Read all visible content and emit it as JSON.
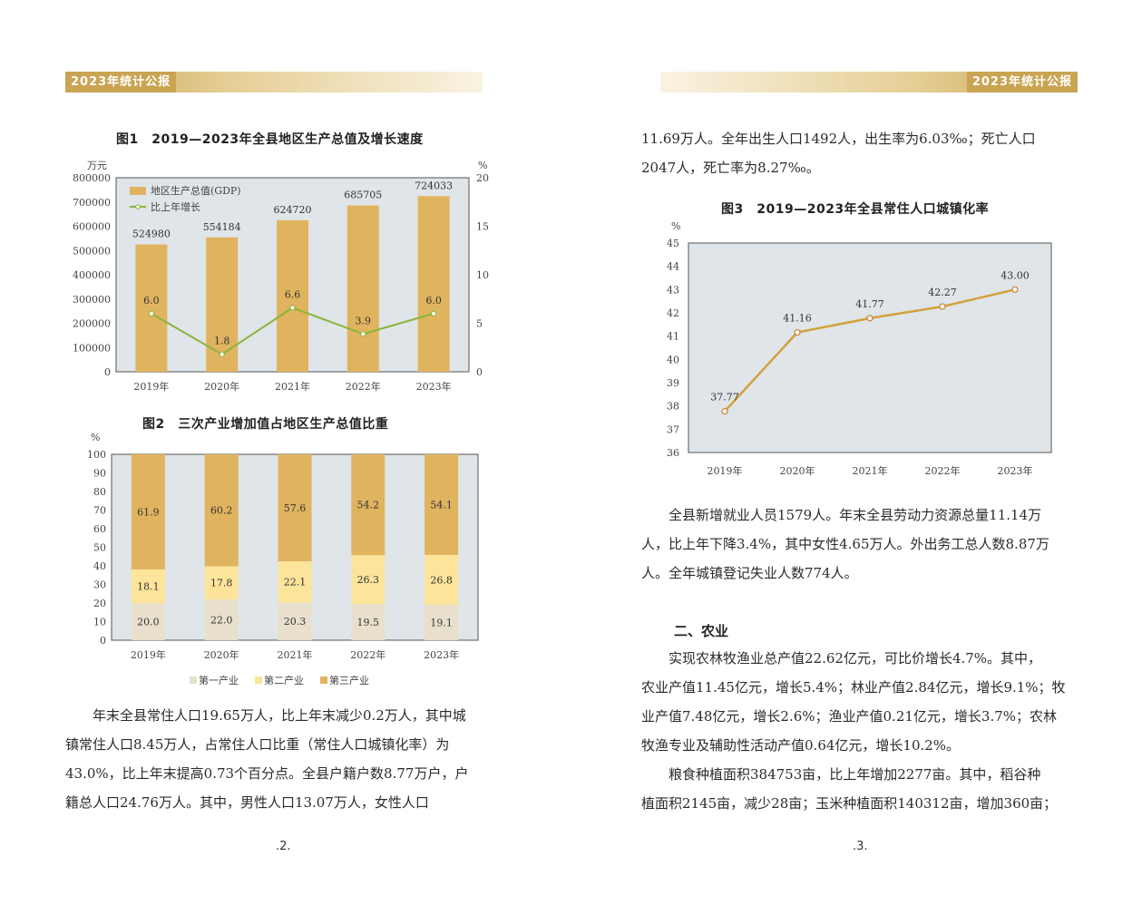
{
  "header": {
    "left_title": "2023年统计公报",
    "right_title": "2023年统计公报"
  },
  "fig1": {
    "title": "图1　2019—2023年全县地区生产总值及增长速度",
    "chart_data": {
      "type": "bar",
      "categories": [
        "2019年",
        "2020年",
        "2021年",
        "2022年",
        "2023年"
      ],
      "series": [
        {
          "name": "地区生产总值(GDP)",
          "type": "bar",
          "values": [
            524980,
            554184,
            624720,
            685705,
            724033
          ],
          "color": "#e0b35f"
        },
        {
          "name": "比上年增长",
          "type": "line",
          "values": [
            6.0,
            1.8,
            6.6,
            3.9,
            6.0
          ],
          "color": "#8ab53a",
          "labels": [
            "6.0",
            "1.8",
            "6.6",
            "3.9",
            "6.0"
          ]
        }
      ],
      "bar_labels": [
        "524980",
        "554184",
        "624720",
        "685705",
        "724033"
      ],
      "ylabel_left": "万元",
      "ylabel_right": "%",
      "ylim_left": [
        0,
        800000
      ],
      "ylim_right": [
        0,
        20
      ],
      "yticks_left": [
        "0",
        "100000",
        "200000",
        "300000",
        "400000",
        "500000",
        "600000",
        "700000",
        "800000"
      ],
      "yticks_right": [
        "0",
        "5",
        "10",
        "15",
        "20"
      ],
      "legend": "top-left",
      "background": "#dfe5e8"
    }
  },
  "fig2": {
    "title": "图2　三次产业增加值占地区生产总值比重",
    "chart_data": {
      "type": "bar",
      "stacked": true,
      "categories": [
        "2019年",
        "2020年",
        "2021年",
        "2022年",
        "2023年"
      ],
      "series": [
        {
          "name": "第一产业",
          "values": [
            20.0,
            22.0,
            20.3,
            19.5,
            19.1
          ],
          "color": "#e8e0cc",
          "labels": [
            "20.0",
            "22.0",
            "20.3",
            "19.5",
            "19.1"
          ]
        },
        {
          "name": "第二产业",
          "values": [
            18.1,
            17.8,
            22.1,
            26.3,
            26.8
          ],
          "color": "#fce59a",
          "labels": [
            "18.1",
            "17.8",
            "22.1",
            "26.3",
            "26.8"
          ]
        },
        {
          "name": "第三产业",
          "values": [
            61.9,
            60.2,
            57.6,
            54.2,
            54.1
          ],
          "color": "#e0b35f",
          "labels": [
            "61.9",
            "60.2",
            "57.6",
            "54.2",
            "54.1"
          ]
        }
      ],
      "ylabel": "%",
      "ylim": [
        0,
        100
      ],
      "yticks": [
        "0",
        "10",
        "20",
        "30",
        "40",
        "50",
        "60",
        "70",
        "80",
        "90",
        "100"
      ],
      "legend": "bottom",
      "background": "#dfe5e8"
    }
  },
  "fig3": {
    "title": "图3　2019—2023年全县常住人口城镇化率",
    "chart_data": {
      "type": "line",
      "categories": [
        "2019年",
        "2020年",
        "2021年",
        "2022年",
        "2023年"
      ],
      "series": [
        {
          "values": [
            37.77,
            41.16,
            41.77,
            42.27,
            43.0
          ],
          "color": "#d4a03c",
          "labels": [
            "37.77",
            "41.16",
            "41.77",
            "42.27",
            "43.00"
          ]
        }
      ],
      "ylabel": "%",
      "ylim": [
        36,
        45
      ],
      "yticks": [
        "36",
        "37",
        "38",
        "39",
        "40",
        "41",
        "42",
        "43",
        "44",
        "45"
      ],
      "background": "#dfe5e8"
    }
  },
  "left_text": [
    "年末全县常住人口19.65万人，比上年末减少0.2万人，其中城",
    "镇常住人口8.45万人，占常住人口比重（常住人口城镇化率）为",
    "43.0%，比上年末提高0.73个百分点。全县户籍户数8.77万户，户",
    "籍总人口24.76万人。其中，男性人口13.07万人，女性人口"
  ],
  "right_top_text": [
    "11.69万人。全年出生人口1492人，出生率为6.03‰；死亡人口",
    "2047人，死亡率为8.27‰。"
  ],
  "employment_text": [
    "全县新增就业人员1579人。年末全县劳动力资源总量11.14万",
    "人，比上年下降3.4%，其中女性4.65万人。外出务工总人数8.87万",
    "人。全年城镇登记失业人数774人。"
  ],
  "section2_title": "二、农业",
  "agri_text": [
    "实现农林牧渔业总产值22.62亿元，可比价增长4.7%。其中，",
    "农业产值11.45亿元，增长5.4%；林业产值2.84亿元，增长9.1%；牧",
    "业产值7.48亿元，增长2.6%；渔业产值0.21亿元，增长3.7%；农林",
    "牧渔专业及辅助性活动产值0.64亿元，增长10.2%。"
  ],
  "grain_text": [
    "粮食种植面积384753亩，比上年增加2277亩。其中，稻谷种",
    "植面积2145亩，减少28亩；玉米种植面积140312亩，增加360亩；"
  ],
  "page_numbers": {
    "left": ".2.",
    "right": ".3."
  }
}
